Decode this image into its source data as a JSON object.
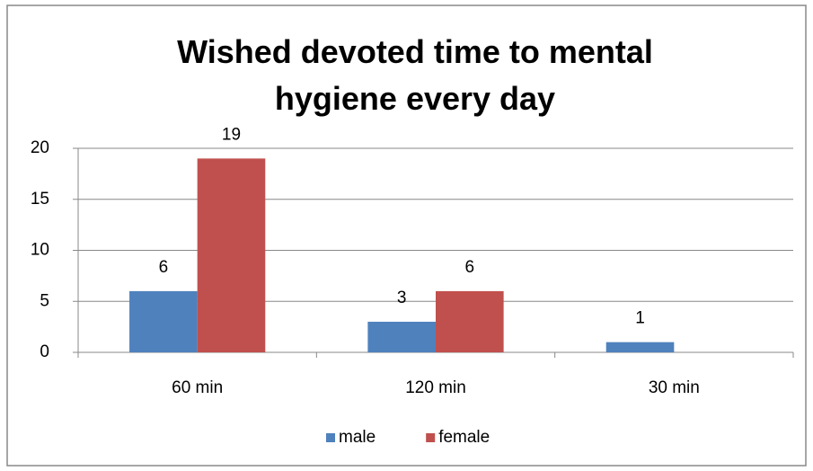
{
  "chart_data": {
    "type": "bar",
    "title": "Wished devoted time to mental hygiene every day",
    "categories": [
      "60 min",
      "120 min",
      "30 min"
    ],
    "series": [
      {
        "name": "male",
        "color": "#4f81bd",
        "values": [
          6,
          3,
          1
        ]
      },
      {
        "name": "female",
        "color": "#c0504d",
        "values": [
          19,
          6,
          null
        ]
      }
    ],
    "ylim": [
      0,
      20
    ],
    "yticks": [
      0,
      5,
      10,
      15,
      20
    ],
    "grid": true,
    "legend": "bottom"
  }
}
